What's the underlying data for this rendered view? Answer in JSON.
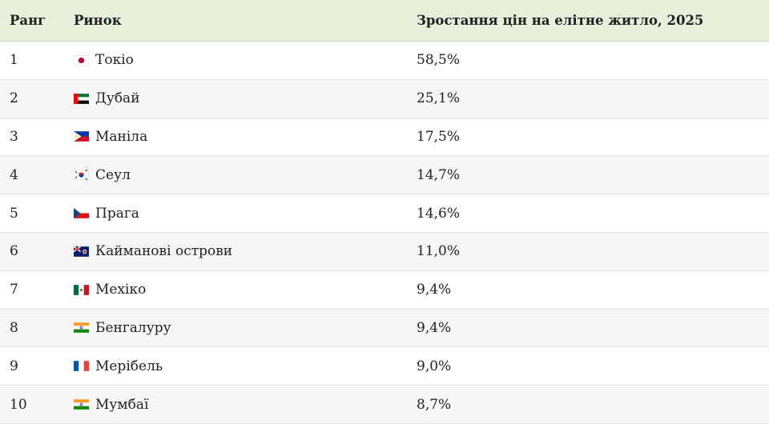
{
  "table": {
    "headers": [
      "Ранг",
      "Ринок",
      "Зростання цін на елітне житло, 2025"
    ],
    "rows": [
      [
        "1",
        "Токіо",
        "58,5%"
      ],
      [
        "2",
        "Дубай",
        "25,1%"
      ],
      [
        "3",
        "Маніла",
        "17,5%"
      ],
      [
        "4",
        "Сеул",
        "14,7%"
      ],
      [
        "5",
        "Прага",
        "14,6%"
      ],
      [
        "6",
        "Кайманові острови",
        "11,0%"
      ],
      [
        "7",
        "Мехіко",
        "9,4%"
      ],
      [
        "8",
        "Бенгалуру",
        "9,4%"
      ],
      [
        "9",
        "Мерібель",
        "9,0%"
      ],
      [
        "10",
        "Мумбаї",
        "8,7%"
      ]
    ]
  }
}
